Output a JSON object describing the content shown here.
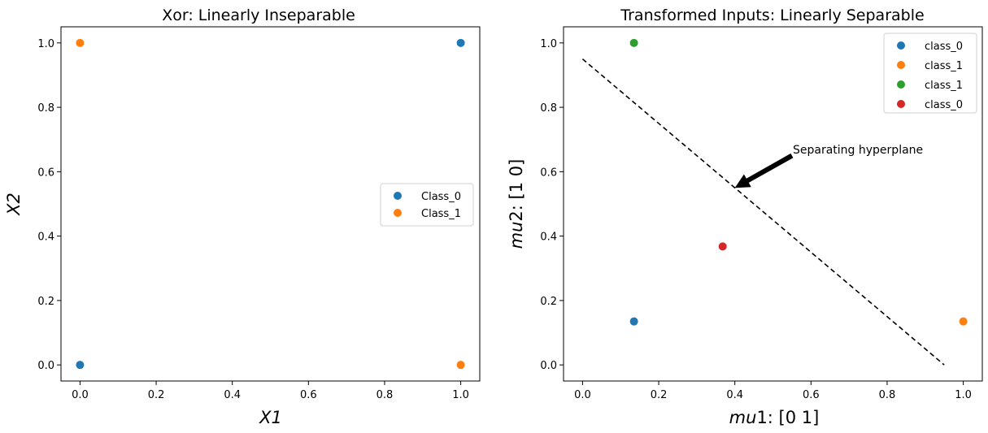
{
  "figure": {
    "background": "#ffffff"
  },
  "chart_data": [
    {
      "type": "scatter",
      "title": "Xor: Linearly Inseparable",
      "xlabel": "X1",
      "ylabel": "X2",
      "xlabel_italic": true,
      "ylabel_italic": true,
      "xlim": [
        -0.05,
        1.05
      ],
      "ylim": [
        -0.05,
        1.05
      ],
      "xticks": [
        0.0,
        0.2,
        0.4,
        0.6,
        0.8,
        1.0
      ],
      "yticks": [
        0.0,
        0.2,
        0.4,
        0.6,
        0.8,
        1.0
      ],
      "xtick_labels": [
        "0.0",
        "0.2",
        "0.4",
        "0.6",
        "0.8",
        "1.0"
      ],
      "ytick_labels": [
        "0.0",
        "0.2",
        "0.4",
        "0.6",
        "0.8",
        "1.0"
      ],
      "grid": false,
      "legend": {
        "placement": "center-right"
      },
      "series": [
        {
          "name": "Class_0",
          "color": "#1f77b4",
          "points": [
            [
              0,
              0
            ],
            [
              1,
              1
            ]
          ]
        },
        {
          "name": "Class_1",
          "color": "#ff7f0e",
          "points": [
            [
              0,
              1
            ],
            [
              1,
              0
            ]
          ]
        }
      ]
    },
    {
      "type": "scatter",
      "title": "Transformed Inputs: Linearly Separable",
      "xlabel": "mu1: [0 1]",
      "ylabel": "mu2: [1 0]",
      "xlabel_parts": {
        "italic": "mu",
        "plain": "1: [0 1]"
      },
      "ylabel_parts": {
        "italic": "mu",
        "plain": "2: [1 0]"
      },
      "xlim": [
        -0.05,
        1.05
      ],
      "ylim": [
        -0.05,
        1.05
      ],
      "xticks": [
        0.0,
        0.2,
        0.4,
        0.6,
        0.8,
        1.0
      ],
      "yticks": [
        0.0,
        0.2,
        0.4,
        0.6,
        0.8,
        1.0
      ],
      "xtick_labels": [
        "0.0",
        "0.2",
        "0.4",
        "0.6",
        "0.8",
        "1.0"
      ],
      "ytick_labels": [
        "0.0",
        "0.2",
        "0.4",
        "0.6",
        "0.8",
        "1.0"
      ],
      "grid": false,
      "legend": {
        "placement": "top-right"
      },
      "series": [
        {
          "name": "class_0",
          "color": "#1f77b4",
          "points": [
            [
              0.135,
              0.135
            ]
          ]
        },
        {
          "name": "class_1",
          "color": "#ff7f0e",
          "points": [
            [
              1.0,
              0.135
            ]
          ]
        },
        {
          "name": "class_1",
          "color": "#2ca02c",
          "points": [
            [
              0.135,
              1.0
            ]
          ]
        },
        {
          "name": "class_0",
          "color": "#d62728",
          "points": [
            [
              0.368,
              0.368
            ]
          ]
        }
      ],
      "lines": [
        {
          "name": "separating-hyperplane",
          "style": "dashed",
          "color": "#000000",
          "points": [
            [
              0.0,
              0.95
            ],
            [
              0.95,
              0.0
            ]
          ]
        }
      ],
      "annotations": [
        {
          "text": "Separating hyperplane",
          "arrow_from": [
            0.55,
            0.65
          ],
          "arrow_to": [
            0.4,
            0.55
          ],
          "text_at": [
            0.55,
            0.655
          ]
        }
      ]
    }
  ]
}
